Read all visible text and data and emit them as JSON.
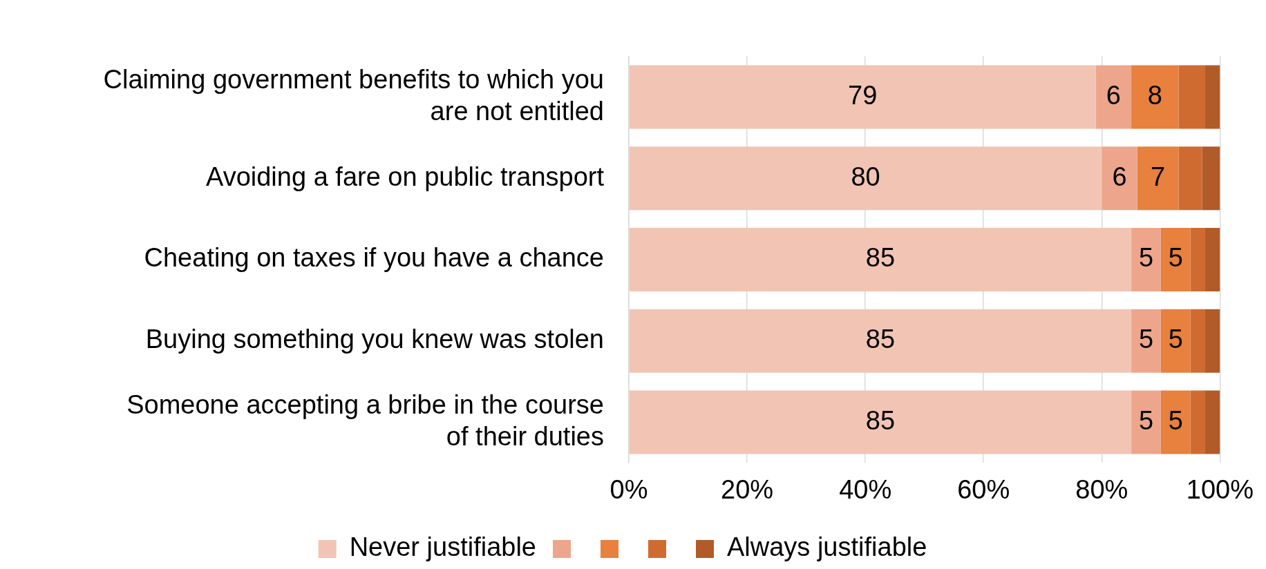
{
  "chart_data": {
    "type": "bar",
    "orientation": "horizontal",
    "stacked": true,
    "categories": [
      "Claiming government benefits to which you are not entitled",
      "Avoiding a fare on public transport",
      "Cheating on taxes if you have a chance",
      "Buying something you knew was stolen",
      "Someone accepting a bribe in the course of their duties"
    ],
    "series": [
      {
        "name": "Never justifiable",
        "color": "#f2c4b4",
        "values": [
          79,
          80,
          85,
          85,
          85
        ],
        "value_labels": [
          "79",
          "80",
          "85",
          "85",
          "85"
        ]
      },
      {
        "color": "#eda68b",
        "values": [
          6,
          6,
          5,
          5,
          5
        ],
        "value_labels": [
          "6",
          "6",
          "5",
          "5",
          "5"
        ]
      },
      {
        "color": "#e8803e",
        "values": [
          8,
          7,
          5,
          5,
          5
        ],
        "value_labels": [
          "8",
          "7",
          "5",
          "5",
          "5"
        ]
      },
      {
        "color": "#cf6b31",
        "values": [
          4.5,
          4,
          2.5,
          2.5,
          2.5
        ]
      },
      {
        "name": "Always justifiable",
        "color": "#b05b28",
        "values": [
          2.5,
          3,
          2.5,
          2.5,
          2.5
        ]
      }
    ],
    "xlim": [
      0,
      100
    ],
    "xticks": [
      {
        "value": 0,
        "label": "0%"
      },
      {
        "value": 20,
        "label": "20%"
      },
      {
        "value": 40,
        "label": "40%"
      },
      {
        "value": 60,
        "label": "60%"
      },
      {
        "value": 80,
        "label": "80%"
      },
      {
        "value": 100,
        "label": "100%"
      }
    ],
    "grid": "x",
    "legend": "bottom"
  }
}
